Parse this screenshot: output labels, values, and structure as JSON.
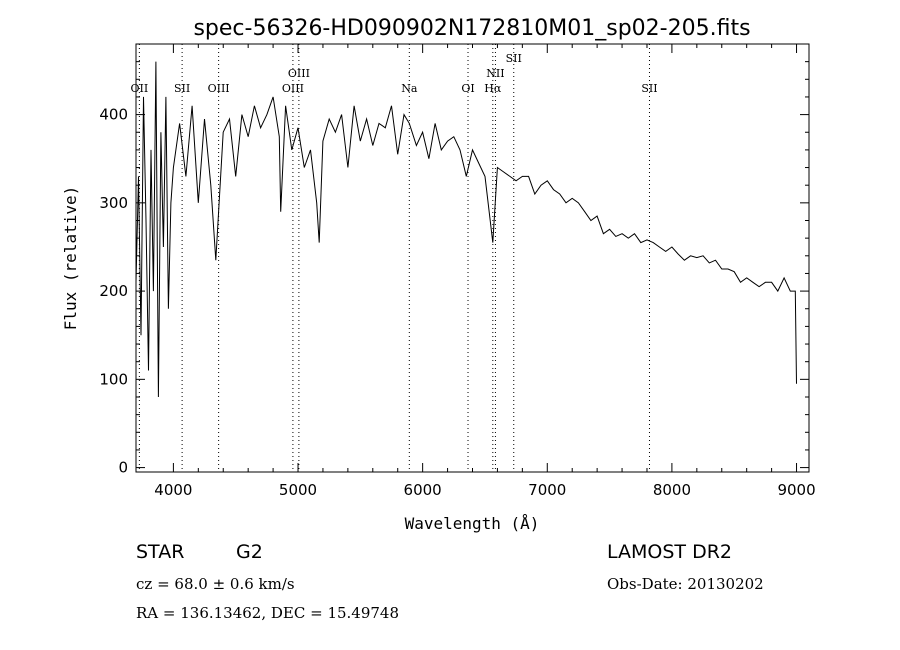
{
  "chart_data": {
    "type": "line",
    "title": "spec-56326-HD090902N172810M01_sp02-205.fits",
    "xlabel": "Wavelength (Å)",
    "ylabel": "Flux (relative)",
    "xlim": [
      3700,
      9100
    ],
    "ylim": [
      -5,
      480
    ],
    "xticks": [
      4000,
      5000,
      6000,
      7000,
      8000,
      9000
    ],
    "yticks": [
      0,
      100,
      200,
      300,
      400
    ],
    "grid": false,
    "series": [
      {
        "color": "#000000",
        "x": [
          3700,
          3720,
          3740,
          3760,
          3780,
          3800,
          3820,
          3840,
          3860,
          3880,
          3900,
          3920,
          3940,
          3960,
          3980,
          4000,
          4050,
          4100,
          4150,
          4200,
          4250,
          4300,
          4340,
          4400,
          4450,
          4500,
          4550,
          4600,
          4650,
          4700,
          4750,
          4800,
          4850,
          4861,
          4900,
          4950,
          5000,
          5050,
          5100,
          5150,
          5170,
          5200,
          5250,
          5300,
          5350,
          5400,
          5450,
          5500,
          5550,
          5600,
          5650,
          5700,
          5750,
          5800,
          5850,
          5893,
          5950,
          6000,
          6050,
          6100,
          6150,
          6200,
          6250,
          6300,
          6350,
          6400,
          6450,
          6500,
          6563,
          6600,
          6650,
          6700,
          6750,
          6800,
          6850,
          6900,
          6950,
          7000,
          7050,
          7100,
          7150,
          7200,
          7250,
          7300,
          7350,
          7400,
          7450,
          7500,
          7550,
          7600,
          7650,
          7700,
          7750,
          7800,
          7850,
          7900,
          7950,
          8000,
          8050,
          8100,
          8150,
          8200,
          8250,
          8300,
          8350,
          8400,
          8450,
          8500,
          8550,
          8600,
          8650,
          8700,
          8750,
          8800,
          8850,
          8900,
          8950,
          8990,
          9000
        ],
        "y": [
          210,
          330,
          150,
          420,
          280,
          110,
          360,
          200,
          460,
          80,
          380,
          250,
          420,
          180,
          300,
          340,
          390,
          330,
          410,
          300,
          395,
          320,
          235,
          380,
          395,
          330,
          400,
          375,
          410,
          385,
          400,
          420,
          375,
          290,
          410,
          360,
          385,
          340,
          360,
          300,
          255,
          370,
          395,
          380,
          400,
          340,
          410,
          370,
          395,
          365,
          390,
          385,
          410,
          355,
          400,
          390,
          365,
          380,
          350,
          390,
          360,
          370,
          375,
          360,
          330,
          360,
          345,
          330,
          255,
          340,
          335,
          330,
          325,
          330,
          330,
          310,
          320,
          325,
          315,
          310,
          300,
          305,
          300,
          290,
          280,
          285,
          265,
          270,
          262,
          265,
          260,
          265,
          255,
          258,
          255,
          250,
          245,
          250,
          242,
          235,
          240,
          238,
          240,
          232,
          235,
          225,
          225,
          222,
          210,
          215,
          210,
          205,
          210,
          210,
          200,
          215,
          200,
          200,
          95
        ]
      }
    ],
    "lines": [
      {
        "label": "OII",
        "x": 3727
      },
      {
        "label": "SII",
        "x": 4070
      },
      {
        "label": "OIII",
        "x": 4363
      },
      {
        "label": "OIII",
        "x": 4959
      },
      {
        "label": "OIII",
        "x": 5007
      },
      {
        "label": "Na",
        "x": 5893
      },
      {
        "label": "OI",
        "x": 6364
      },
      {
        "label": "Hα",
        "x": 6563
      },
      {
        "label": "NII",
        "x": 6584
      },
      {
        "label": "SII",
        "x": 6731
      },
      {
        "label": "SII",
        "x": 7820
      }
    ]
  },
  "info": {
    "object_type": "STAR",
    "subclass": "G2",
    "survey": "LAMOST DR2",
    "velocity": "cz = 68.0 ± 0.6 km/s",
    "obs_date": "Obs-Date: 20130202",
    "coords": "RA = 136.13462, DEC =  15.49748"
  }
}
